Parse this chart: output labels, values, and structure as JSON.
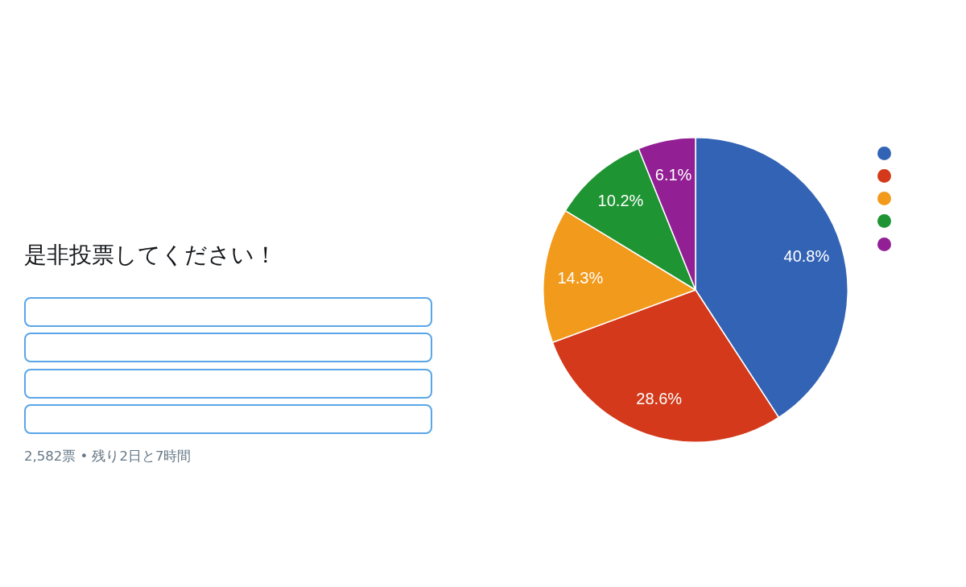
{
  "chart_data": [
    {
      "type": "other",
      "annotations": [
        "是非投票してください！",
        "2,582票 • 残り2日と7時間"
      ]
    },
    {
      "type": "pie",
      "categories": [
        null,
        null,
        null,
        null,
        null
      ],
      "values": [
        40.8,
        28.6,
        14.3,
        10.2,
        6.1
      ],
      "colors": [
        "#3363b5",
        "#d3391a",
        "#f29a1c",
        "#1e9433",
        "#921f94"
      ],
      "value_labels": [
        "40.8%",
        "28.6%",
        "14.3%",
        "10.2%",
        "6.1%"
      ]
    }
  ]
}
